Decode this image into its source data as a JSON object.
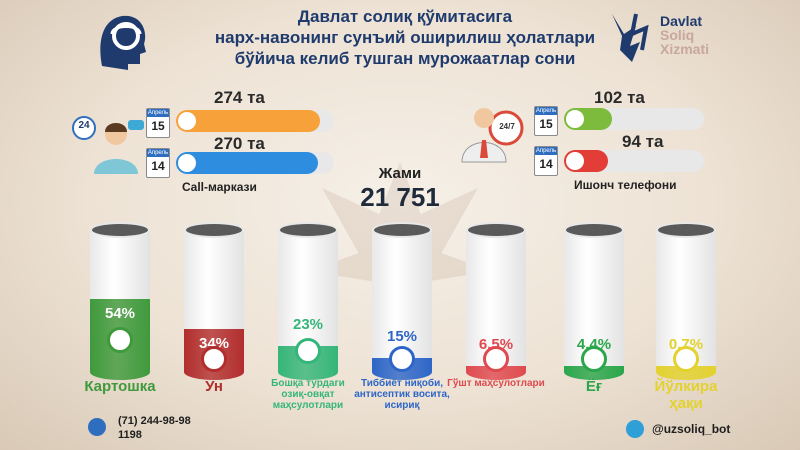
{
  "header": {
    "title_lines": [
      "Давлат солиқ қўмитасига",
      "нарх-навонинг сунъий оширилиш ҳолатлари",
      "бўйича келиб тушган мурожаатлар сони"
    ],
    "logo_lines": [
      "Davlat",
      "Soliq",
      "Xizmati"
    ]
  },
  "call_center": {
    "label": "Call-маркази",
    "badge": "24",
    "rows": [
      {
        "month": "Апрель",
        "day": "15",
        "value_text": "274 та",
        "value": 274,
        "color": "#f7a13a"
      },
      {
        "month": "Апрель",
        "day": "14",
        "value_text": "270 та",
        "value": 270,
        "color": "#2f8de0"
      }
    ]
  },
  "hotline": {
    "label": "Ишонч телефони",
    "badge": "24/7",
    "rows": [
      {
        "month": "Апрель",
        "day": "15",
        "value_text": "102 та",
        "value": 102,
        "color": "#7dbb3c"
      },
      {
        "month": "Апрель",
        "day": "14",
        "value_text": "94 та",
        "value": 94,
        "color": "#e23d36"
      }
    ]
  },
  "total": {
    "label": "Жами",
    "value": "21 751"
  },
  "chart_data": {
    "type": "bar",
    "categories": [
      "Картошка",
      "Ун",
      "Бошқа турдаги озиқ-овқат маҳсулотлари",
      "Тиббиёт ниқоби, антисептик восита, исириқ",
      "Гўшт маҳсулотлари",
      "Ёғ",
      "Йўлкира ҳақи"
    ],
    "values": [
      54,
      34,
      23,
      15,
      6.5,
      4.4,
      0.7
    ],
    "labels": [
      "54%",
      "34%",
      "23%",
      "15%",
      "6.5%",
      "4.4%",
      "0.7%"
    ],
    "colors": [
      "#3f9a3c",
      "#b22e2e",
      "#35b679",
      "#2d66c8",
      "#df4a4f",
      "#2aa64b",
      "#e3d22e"
    ],
    "icons": [
      "potato-icon",
      "flour-icon",
      "grocery-basket-icon",
      "medical-mask-icon",
      "meat-icon",
      "oil-bottle-icon",
      "taxi-icon"
    ],
    "ylim": [
      0,
      100
    ]
  },
  "footer": {
    "phone_lines": [
      "(71) 244-98-98",
      "1198"
    ],
    "telegram": "@uzsoliq_bot"
  }
}
